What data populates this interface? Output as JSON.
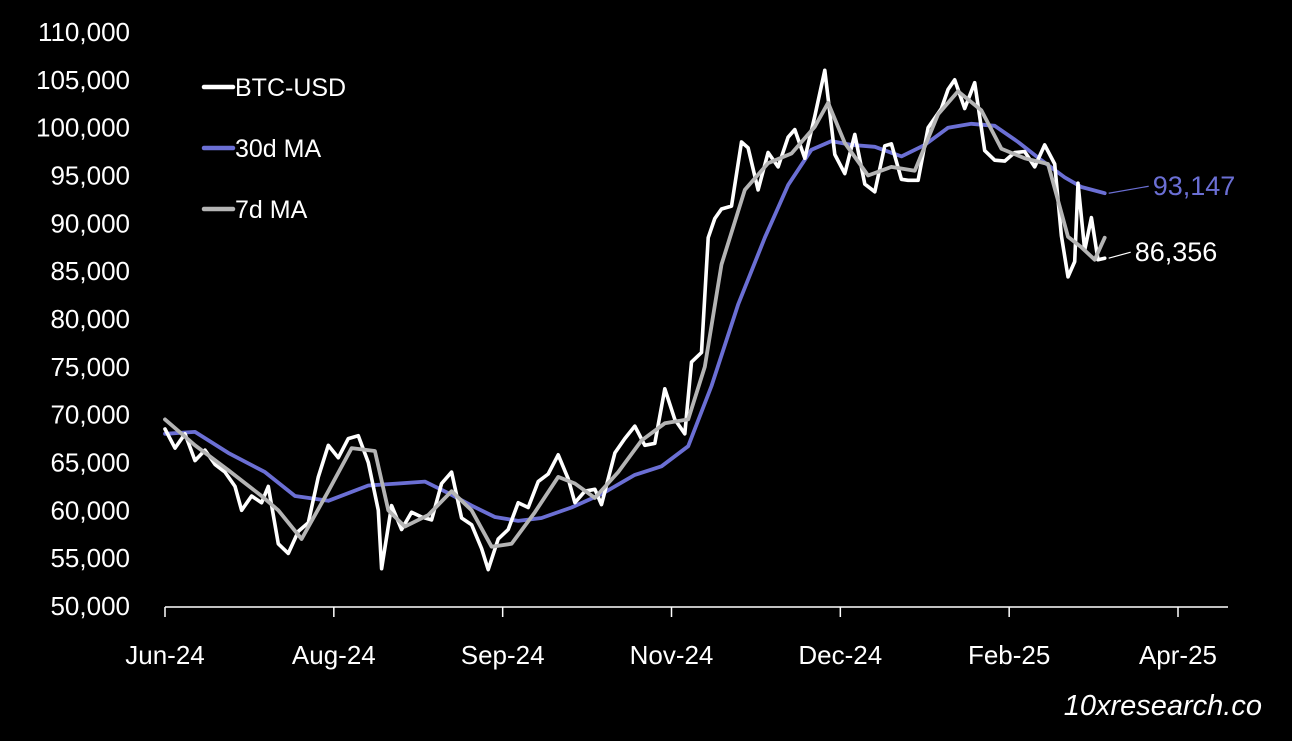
{
  "chart_data": {
    "type": "line",
    "title": "",
    "xlabel": "",
    "ylabel": "",
    "ylim": [
      50000,
      110000
    ],
    "y_ticks": [
      "50,000",
      "55,000",
      "60,000",
      "65,000",
      "70,000",
      "75,000",
      "80,000",
      "85,000",
      "90,000",
      "95,000",
      "100,000",
      "105,000",
      "110,000"
    ],
    "x_ticks": [
      "Jun-24",
      "Aug-24",
      "Sep-24",
      "Nov-24",
      "Dec-24",
      "Feb-25",
      "Apr-25"
    ],
    "x_range": [
      "2024-06-01",
      "2025-04-01"
    ],
    "grid": false,
    "legend_position": "top-left",
    "series": [
      {
        "name": "BTC-USD",
        "color": "#ffffff",
        "points": [
          [
            "2024-06-01",
            68500
          ],
          [
            "2024-06-04",
            66500
          ],
          [
            "2024-06-07",
            68000
          ],
          [
            "2024-06-10",
            65200
          ],
          [
            "2024-06-13",
            66300
          ],
          [
            "2024-06-16",
            64800
          ],
          [
            "2024-06-19",
            64000
          ],
          [
            "2024-06-22",
            62500
          ],
          [
            "2024-06-24",
            60000
          ],
          [
            "2024-06-27",
            61500
          ],
          [
            "2024-06-30",
            60800
          ],
          [
            "2024-07-02",
            62500
          ],
          [
            "2024-07-05",
            56500
          ],
          [
            "2024-07-08",
            55500
          ],
          [
            "2024-07-11",
            57800
          ],
          [
            "2024-07-14",
            58700
          ],
          [
            "2024-07-17",
            63500
          ],
          [
            "2024-07-20",
            66800
          ],
          [
            "2024-07-23",
            65500
          ],
          [
            "2024-07-26",
            67500
          ],
          [
            "2024-07-29",
            67800
          ],
          [
            "2024-08-01",
            65000
          ],
          [
            "2024-08-04",
            60000
          ],
          [
            "2024-08-05",
            53900
          ],
          [
            "2024-08-08",
            60500
          ],
          [
            "2024-08-11",
            58000
          ],
          [
            "2024-08-14",
            59800
          ],
          [
            "2024-08-17",
            59300
          ],
          [
            "2024-08-20",
            59000
          ],
          [
            "2024-08-23",
            62800
          ],
          [
            "2024-08-26",
            64000
          ],
          [
            "2024-08-29",
            59200
          ],
          [
            "2024-09-01",
            58500
          ],
          [
            "2024-09-04",
            56000
          ],
          [
            "2024-09-06",
            53800
          ],
          [
            "2024-09-09",
            57000
          ],
          [
            "2024-09-12",
            58000
          ],
          [
            "2024-09-15",
            60800
          ],
          [
            "2024-09-18",
            60300
          ],
          [
            "2024-09-21",
            63000
          ],
          [
            "2024-09-24",
            63800
          ],
          [
            "2024-09-27",
            65800
          ],
          [
            "2024-09-30",
            63300
          ],
          [
            "2024-10-02",
            60800
          ],
          [
            "2024-10-05",
            62000
          ],
          [
            "2024-10-08",
            62200
          ],
          [
            "2024-10-10",
            60600
          ],
          [
            "2024-10-14",
            66000
          ],
          [
            "2024-10-17",
            67500
          ],
          [
            "2024-10-20",
            68800
          ],
          [
            "2024-10-23",
            66800
          ],
          [
            "2024-10-26",
            67000
          ],
          [
            "2024-10-29",
            72700
          ],
          [
            "2024-11-01",
            69500
          ],
          [
            "2024-11-04",
            68000
          ],
          [
            "2024-11-06",
            75500
          ],
          [
            "2024-11-09",
            76500
          ],
          [
            "2024-11-11",
            88500
          ],
          [
            "2024-11-13",
            90500
          ],
          [
            "2024-11-15",
            91500
          ],
          [
            "2024-11-18",
            91800
          ],
          [
            "2024-11-21",
            98500
          ],
          [
            "2024-11-23",
            97900
          ],
          [
            "2024-11-26",
            93500
          ],
          [
            "2024-11-29",
            97400
          ],
          [
            "2024-12-02",
            95900
          ],
          [
            "2024-12-05",
            99000
          ],
          [
            "2024-12-07",
            99800
          ],
          [
            "2024-12-10",
            96800
          ],
          [
            "2024-12-13",
            101200
          ],
          [
            "2024-12-16",
            106000
          ],
          [
            "2024-12-19",
            97200
          ],
          [
            "2024-12-22",
            95200
          ],
          [
            "2024-12-25",
            99300
          ],
          [
            "2024-12-28",
            94100
          ],
          [
            "2024-12-31",
            93300
          ],
          [
            "2025-01-03",
            98100
          ],
          [
            "2025-01-05",
            98300
          ],
          [
            "2025-01-08",
            94600
          ],
          [
            "2025-01-10",
            94500
          ],
          [
            "2025-01-13",
            94500
          ],
          [
            "2025-01-16",
            100000
          ],
          [
            "2025-01-20",
            102000
          ],
          [
            "2025-01-22",
            104000
          ],
          [
            "2025-01-24",
            105000
          ],
          [
            "2025-01-27",
            102000
          ],
          [
            "2025-01-30",
            104700
          ],
          [
            "2025-02-02",
            97600
          ],
          [
            "2025-02-05",
            96600
          ],
          [
            "2025-02-08",
            96500
          ],
          [
            "2025-02-11",
            97400
          ],
          [
            "2025-02-14",
            97500
          ],
          [
            "2025-02-17",
            95900
          ],
          [
            "2025-02-20",
            98200
          ],
          [
            "2025-02-23",
            96200
          ],
          [
            "2025-02-25",
            88700
          ],
          [
            "2025-02-27",
            84400
          ],
          [
            "2025-03-01",
            86000
          ],
          [
            "2025-03-02",
            94200
          ],
          [
            "2025-03-04",
            87200
          ],
          [
            "2025-03-06",
            90600
          ],
          [
            "2025-03-08",
            86200
          ],
          [
            "2025-03-10",
            86356
          ]
        ]
      },
      {
        "name": "30d MA",
        "color": "#6b6fd4",
        "points": [
          [
            "2024-06-01",
            68000
          ],
          [
            "2024-06-10",
            68200
          ],
          [
            "2024-06-20",
            66000
          ],
          [
            "2024-07-01",
            64000
          ],
          [
            "2024-07-10",
            61500
          ],
          [
            "2024-07-20",
            61000
          ],
          [
            "2024-08-01",
            62600
          ],
          [
            "2024-08-10",
            62800
          ],
          [
            "2024-08-18",
            63000
          ],
          [
            "2024-08-25",
            61800
          ],
          [
            "2024-09-01",
            60500
          ],
          [
            "2024-09-08",
            59300
          ],
          [
            "2024-09-15",
            58900
          ],
          [
            "2024-09-22",
            59200
          ],
          [
            "2024-10-01",
            60300
          ],
          [
            "2024-10-10",
            61700
          ],
          [
            "2024-10-20",
            63700
          ],
          [
            "2024-10-28",
            64600
          ],
          [
            "2024-11-05",
            66700
          ],
          [
            "2024-11-12",
            73000
          ],
          [
            "2024-11-20",
            81500
          ],
          [
            "2024-11-28",
            88500
          ],
          [
            "2024-12-05",
            94000
          ],
          [
            "2024-12-12",
            97700
          ],
          [
            "2024-12-18",
            98600
          ],
          [
            "2024-12-24",
            98200
          ],
          [
            "2024-12-31",
            98000
          ],
          [
            "2025-01-08",
            97000
          ],
          [
            "2025-01-15",
            98200
          ],
          [
            "2025-01-22",
            100000
          ],
          [
            "2025-01-29",
            100400
          ],
          [
            "2025-02-05",
            100200
          ],
          [
            "2025-02-12",
            98500
          ],
          [
            "2025-02-19",
            96600
          ],
          [
            "2025-02-26",
            94800
          ],
          [
            "2025-03-03",
            93800
          ],
          [
            "2025-03-10",
            93147
          ]
        ]
      },
      {
        "name": "7d MA",
        "color": "#b4b4b4",
        "points": [
          [
            "2024-06-01",
            69500
          ],
          [
            "2024-06-10",
            66800
          ],
          [
            "2024-06-20",
            64200
          ],
          [
            "2024-06-30",
            61500
          ],
          [
            "2024-07-05",
            60000
          ],
          [
            "2024-07-12",
            57000
          ],
          [
            "2024-07-20",
            62000
          ],
          [
            "2024-07-27",
            66500
          ],
          [
            "2024-08-03",
            66200
          ],
          [
            "2024-08-07",
            60000
          ],
          [
            "2024-08-12",
            58300
          ],
          [
            "2024-08-19",
            59500
          ],
          [
            "2024-08-26",
            62000
          ],
          [
            "2024-09-01",
            60000
          ],
          [
            "2024-09-07",
            56200
          ],
          [
            "2024-09-13",
            56500
          ],
          [
            "2024-09-20",
            59800
          ],
          [
            "2024-09-27",
            63500
          ],
          [
            "2024-10-02",
            62800
          ],
          [
            "2024-10-08",
            61300
          ],
          [
            "2024-10-15",
            64000
          ],
          [
            "2024-10-22",
            67300
          ],
          [
            "2024-10-29",
            69100
          ],
          [
            "2024-11-05",
            69500
          ],
          [
            "2024-11-10",
            75000
          ],
          [
            "2024-11-15",
            85700
          ],
          [
            "2024-11-22",
            93500
          ],
          [
            "2024-11-29",
            96300
          ],
          [
            "2024-12-06",
            97300
          ],
          [
            "2024-12-13",
            100100
          ],
          [
            "2024-12-17",
            102600
          ],
          [
            "2024-12-22",
            98400
          ],
          [
            "2024-12-29",
            95000
          ],
          [
            "2025-01-05",
            95900
          ],
          [
            "2025-01-12",
            95500
          ],
          [
            "2025-01-19",
            101400
          ],
          [
            "2025-01-25",
            103800
          ],
          [
            "2025-02-01",
            101800
          ],
          [
            "2025-02-07",
            97800
          ],
          [
            "2025-02-14",
            96800
          ],
          [
            "2025-02-21",
            96200
          ],
          [
            "2025-02-27",
            88600
          ],
          [
            "2025-03-03",
            87500
          ],
          [
            "2025-03-07",
            86200
          ],
          [
            "2025-03-10",
            88500
          ]
        ]
      }
    ],
    "annotations": [
      {
        "series": "30d MA",
        "text": "93,147",
        "color": "#6b6fd4"
      },
      {
        "series": "BTC-USD",
        "text": "86,356",
        "color": "#ffffff"
      }
    ]
  },
  "legend": [
    {
      "label": "BTC-USD",
      "color": "#ffffff"
    },
    {
      "label": "30d MA",
      "color": "#6b6fd4"
    },
    {
      "label": "7d MA",
      "color": "#b4b4b4"
    }
  ],
  "watermark": "10xresearch.co"
}
